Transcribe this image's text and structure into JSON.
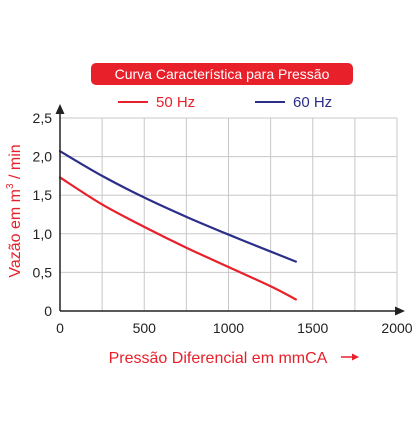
{
  "chart_data": {
    "type": "line",
    "title": "Curva Característica para Pressão",
    "xlabel": "Pressão Diferencial em mmCA",
    "ylabel": "Vazão em m",
    "ylabel_superscript": "3",
    "ylabel_suffix": " / min",
    "xlim": [
      0,
      2000
    ],
    "ylim": [
      0,
      2.5
    ],
    "x_ticks": [
      0,
      500,
      1000,
      1500,
      2000
    ],
    "x_tick_labels": [
      "0",
      "500",
      "1000",
      "1500",
      "2000"
    ],
    "y_ticks": [
      0,
      0.5,
      1.0,
      1.5,
      2.0,
      2.5
    ],
    "y_tick_labels": [
      "0",
      "0,5",
      "1,0",
      "1,5",
      "2,0",
      "2,5"
    ],
    "grid": true,
    "legend_position": "top",
    "series": [
      {
        "name": "50 Hz",
        "color": "#e8202a",
        "x": [
          0,
          250,
          500,
          750,
          1000,
          1250,
          1400
        ],
        "y": [
          1.73,
          1.38,
          1.09,
          0.82,
          0.57,
          0.32,
          0.15
        ]
      },
      {
        "name": "60 Hz",
        "color": "#2b2f8a",
        "x": [
          0,
          250,
          500,
          750,
          1000,
          1250,
          1400
        ],
        "y": [
          2.07,
          1.75,
          1.47,
          1.22,
          0.99,
          0.77,
          0.64
        ]
      }
    ]
  },
  "colors": {
    "title_bg": "#e8202a",
    "axis_label": "#e8202a",
    "grid": "#c8c8c8",
    "axis": "#222222"
  }
}
